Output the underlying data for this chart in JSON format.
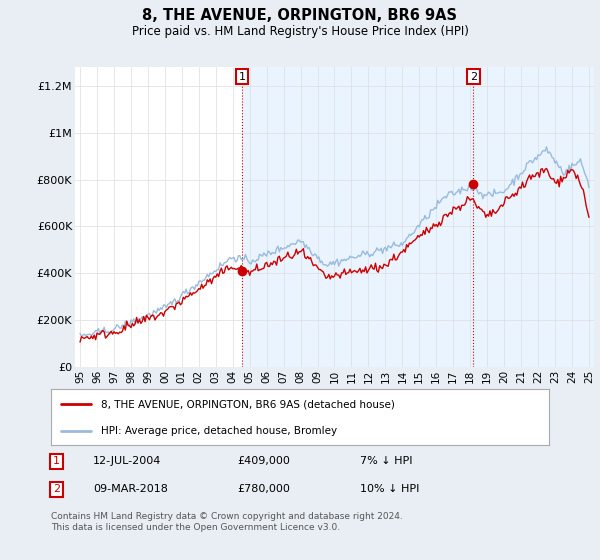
{
  "title": "8, THE AVENUE, ORPINGTON, BR6 9AS",
  "subtitle": "Price paid vs. HM Land Registry's House Price Index (HPI)",
  "legend_line1": "8, THE AVENUE, ORPINGTON, BR6 9AS (detached house)",
  "legend_line2": "HPI: Average price, detached house, Bromley",
  "footer": "Contains HM Land Registry data © Crown copyright and database right 2024.\nThis data is licensed under the Open Government Licence v3.0.",
  "sale1_label": "1",
  "sale1_date": "12-JUL-2004",
  "sale1_price": "£409,000",
  "sale1_hpi": "7% ↓ HPI",
  "sale2_label": "2",
  "sale2_date": "09-MAR-2018",
  "sale2_price": "£780,000",
  "sale2_hpi": "10% ↓ HPI",
  "xlim": [
    1994.7,
    2025.3
  ],
  "ylim": [
    0,
    1280000
  ],
  "yticks": [
    0,
    200000,
    400000,
    600000,
    800000,
    1000000,
    1200000
  ],
  "ytick_labels": [
    "£0",
    "£200K",
    "£400K",
    "£600K",
    "£800K",
    "£1M",
    "£1.2M"
  ],
  "xticks": [
    1995,
    1996,
    1997,
    1998,
    1999,
    2000,
    2001,
    2002,
    2003,
    2004,
    2005,
    2006,
    2007,
    2008,
    2009,
    2010,
    2011,
    2012,
    2013,
    2014,
    2015,
    2016,
    2017,
    2018,
    2019,
    2020,
    2021,
    2022,
    2023,
    2024,
    2025
  ],
  "red_color": "#cc0000",
  "blue_color": "#99bbdd",
  "shade_color": "#ddeeff",
  "marker_color": "#cc0000",
  "sale1_x": 2004.54,
  "sale1_y": 409000,
  "sale2_x": 2018.19,
  "sale2_y": 780000,
  "background_color": "#e8eef4",
  "plot_bg": "#ffffff",
  "grid_color": "#cccccc",
  "grid_color2": "#dddddd"
}
